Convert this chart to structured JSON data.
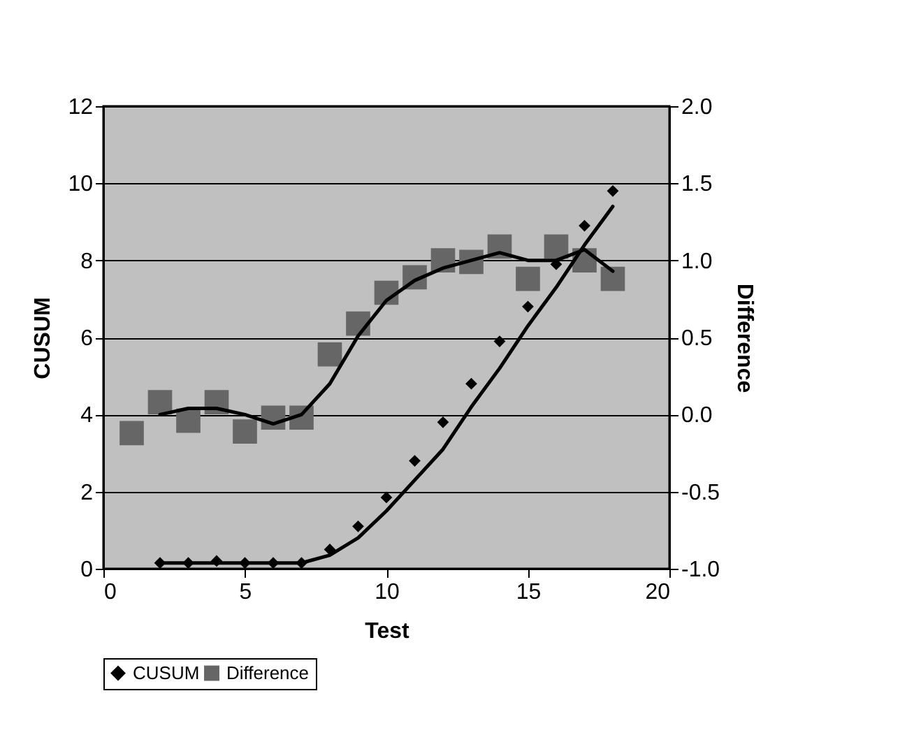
{
  "chart_data": {
    "type": "scatter",
    "xlabel": "Test",
    "ylabel": "CUSUM",
    "y2label": "Difference",
    "xlim": [
      0,
      20
    ],
    "xticks": [
      0,
      5,
      10,
      15,
      20
    ],
    "ylim": [
      0,
      12
    ],
    "yticks": [
      0,
      2,
      4,
      6,
      8,
      10,
      12
    ],
    "y2lim": [
      -1.0,
      2.0
    ],
    "y2ticks": [
      {
        "value": -1,
        "label": "-1.0"
      },
      {
        "value": -0.5,
        "label": "-0.5"
      },
      {
        "value": 0,
        "label": "0.0"
      },
      {
        "value": 0.5,
        "label": "0.5"
      },
      {
        "value": 1,
        "label": "1.0"
      },
      {
        "value": 1.5,
        "label": "1.5"
      },
      {
        "value": 2,
        "label": "2.0"
      }
    ],
    "grid": "y",
    "legend": "bottom",
    "series": [
      {
        "name": "CUSUM",
        "marker": "diamond",
        "color": "#000000",
        "x": [
          2,
          3,
          4,
          5,
          6,
          7,
          8,
          9,
          10,
          11,
          12,
          13,
          14,
          15,
          16,
          17,
          18
        ],
        "values": [
          0.15,
          0.15,
          0.2,
          0.15,
          0.15,
          0.15,
          0.5,
          1.1,
          1.85,
          2.8,
          3.8,
          4.8,
          5.9,
          6.8,
          7.9,
          8.9,
          9.8
        ]
      },
      {
        "name": "Difference",
        "marker": "square",
        "axis": "y2",
        "color": "#666666",
        "x": [
          1,
          2,
          3,
          4,
          5,
          6,
          7,
          8,
          9,
          10,
          11,
          12,
          13,
          14,
          15,
          16,
          17,
          18
        ],
        "values": [
          -0.12,
          0.08,
          -0.04,
          0.08,
          -0.11,
          -0.02,
          -0.02,
          0.39,
          0.59,
          0.79,
          0.89,
          1.0,
          0.99,
          1.09,
          0.88,
          1.09,
          1.0,
          0.88
        ]
      },
      {
        "type": "line",
        "color": "#000000",
        "x": [
          2,
          3,
          4,
          5,
          6,
          7,
          8,
          9,
          10,
          11,
          12,
          13,
          14,
          15,
          16,
          17,
          18
        ],
        "values": [
          0.15,
          0.15,
          0.15,
          0.15,
          0.15,
          0.15,
          0.35,
          0.8,
          1.5,
          2.3,
          3.1,
          4.2,
          5.2,
          6.3,
          7.3,
          8.4,
          9.4
        ]
      },
      {
        "type": "line",
        "axis": "y2",
        "color": "#000000",
        "x": [
          2,
          3,
          4,
          5,
          6,
          7,
          8,
          9,
          10,
          11,
          12,
          13,
          14,
          15,
          16,
          17,
          18
        ],
        "values": [
          0.0,
          0.04,
          0.04,
          0.0,
          -0.06,
          0.0,
          0.2,
          0.51,
          0.74,
          0.87,
          0.95,
          1.0,
          1.05,
          1.0,
          1.0,
          1.07,
          0.93
        ]
      }
    ]
  }
}
